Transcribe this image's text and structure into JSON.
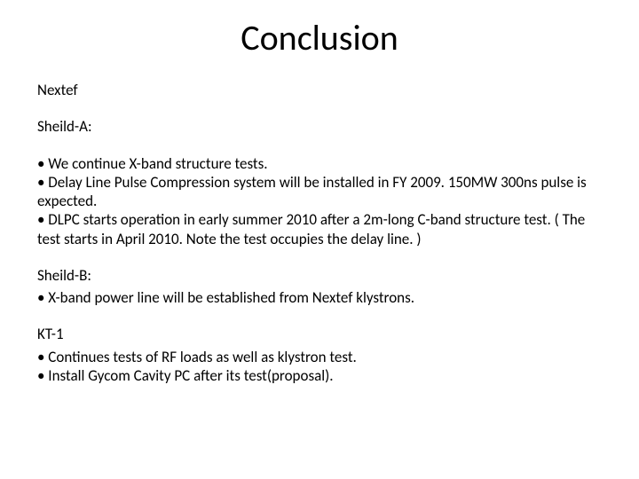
{
  "title": "Conclusion",
  "l_nextef": "Nextef",
  "l_sheild_a": "Sheild-A:",
  "b_a1": "• We continue X-band structure tests.",
  "b_a2": "• Delay Line Pulse Compression system will be installed in FY 2009. 150MW 300ns pulse is expected.",
  "b_a3": "• DLPC starts operation in early summer 2010 after a 2m-long C-band structure test. ( The test starts in April 2010. Note the test occupies the delay line. )",
  "l_sheild_b": "Sheild-B:",
  "b_b1": "• X-band power line will be established from Nextef klystrons.",
  "l_kt1": "KT-1",
  "b_k1": "• Continues tests of RF loads as well as klystron test.",
  "b_k2": "• Install Gycom Cavity PC after its test(proposal)."
}
